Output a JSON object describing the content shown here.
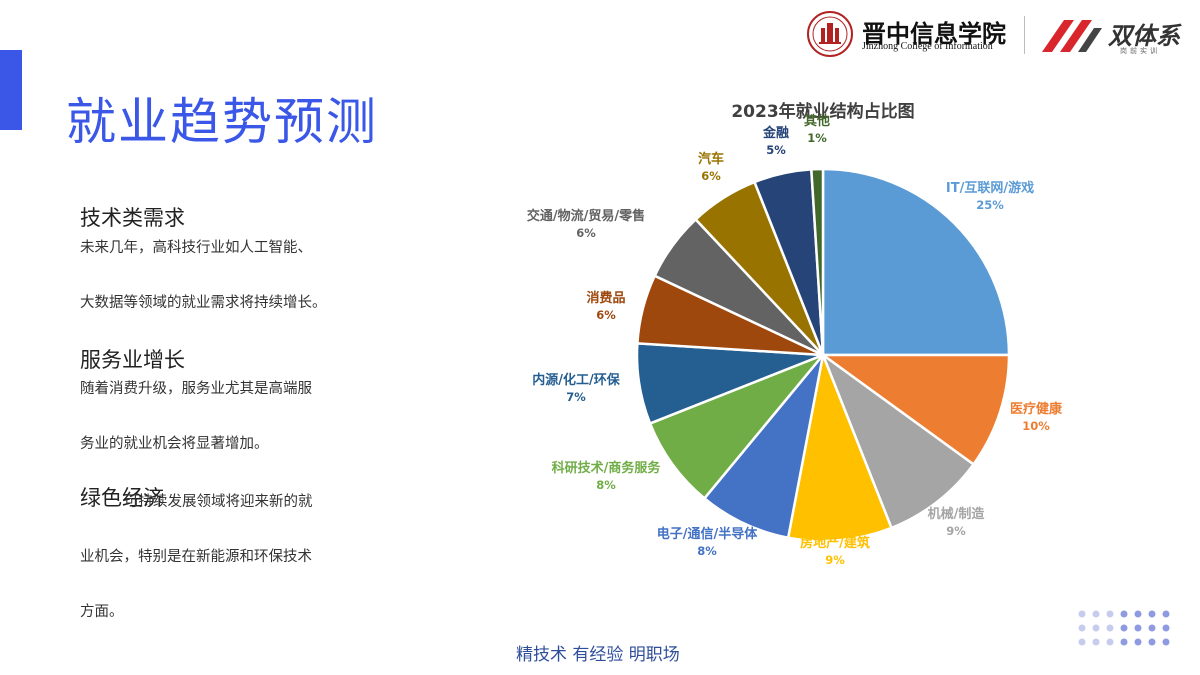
{
  "slide": {
    "title": "就业趋势预测",
    "tagline": "精技术 有经验 明职场"
  },
  "header": {
    "college_cn": "晋中信息学院",
    "college_en": "Jinzhong College of Information",
    "brand_name": "双体系",
    "brand_sub": "岗前实训"
  },
  "sections": [
    {
      "heading": "技术类需求",
      "lines": [
        "未来几年，高科技行业如人工智能、",
        "大数据等领域的就业需求将持续增长。"
      ]
    },
    {
      "heading": "服务业增长",
      "lines": [
        "随着消费升级，服务业尤其是高端服",
        "务业的就业机会将显著增加。"
      ]
    },
    {
      "heading": "绿色经济",
      "lines": [
        "可持续发展领域将迎来新的就",
        "业机会，特别是在新能源和环保技术",
        "方面。"
      ]
    }
  ],
  "chart_data": {
    "type": "pie",
    "title": "2023年就业结构占比图",
    "start_angle_deg": 0,
    "direction": "clockwise",
    "slices": [
      {
        "label": "IT/互联网/游戏",
        "value": 25,
        "display": "25%",
        "color": "#5b9bd5"
      },
      {
        "label": "医疗健康",
        "value": 10,
        "display": "10%",
        "color": "#ed7d31"
      },
      {
        "label": "机械/制造",
        "value": 9,
        "display": "9%",
        "color": "#a5a5a5"
      },
      {
        "label": "房地产/建筑",
        "value": 9,
        "display": "9%",
        "color": "#ffc000"
      },
      {
        "label": "电子/通信/半导体",
        "value": 8,
        "display": "8%",
        "color": "#4472c4"
      },
      {
        "label": "科研技术/商务服务",
        "value": 8,
        "display": "8%",
        "color": "#70ad47"
      },
      {
        "label": "内源/化工/环保",
        "value": 7,
        "display": "7%",
        "color": "#255e91"
      },
      {
        "label": "消费品",
        "value": 6,
        "display": "6%",
        "color": "#9e480e"
      },
      {
        "label": "交通/物流/贸易/零售",
        "value": 6,
        "display": "6%",
        "color": "#636363"
      },
      {
        "label": "汽车",
        "value": 6,
        "display": "6%",
        "color": "#997300"
      },
      {
        "label": "金融",
        "value": 5,
        "display": "5%",
        "color": "#264478"
      },
      {
        "label": "其他",
        "value": 1,
        "display": "1%",
        "color": "#43682b"
      }
    ],
    "label_colors": [
      "#5b9bd5",
      "#ed7d31",
      "#a5a5a5",
      "#ffc000",
      "#4472c4",
      "#70ad47",
      "#255e91",
      "#9e480e",
      "#636363",
      "#997300",
      "#264478",
      "#43682b"
    ]
  },
  "colors": {
    "accent": "#3a57e8",
    "tagline": "#2f4e9a",
    "brand_red": "#d9262c",
    "seal_red": "#b22222"
  }
}
